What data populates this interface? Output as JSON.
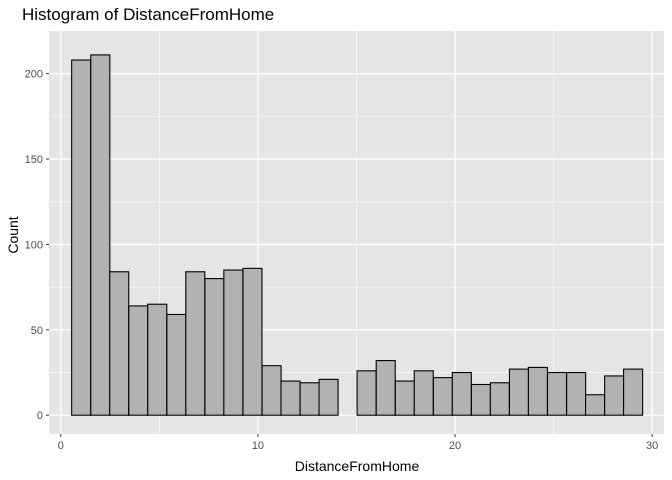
{
  "chart_data": {
    "type": "bar",
    "title": "Histogram of DistanceFromHome",
    "xlabel": "DistanceFromHome",
    "ylabel": "Count",
    "xlim": [
      -0.6,
      30.6
    ],
    "ylim": [
      -11,
      225
    ],
    "x_ticks": [
      0,
      10,
      20,
      30
    ],
    "y_ticks": [
      0,
      50,
      100,
      150,
      200
    ],
    "grid": true,
    "bin_width": 0.965,
    "bins": [
      {
        "x_start": 0.55,
        "count": 208
      },
      {
        "x_start": 1.52,
        "count": 211
      },
      {
        "x_start": 2.48,
        "count": 84
      },
      {
        "x_start": 3.45,
        "count": 64
      },
      {
        "x_start": 4.41,
        "count": 65
      },
      {
        "x_start": 5.38,
        "count": 59
      },
      {
        "x_start": 6.34,
        "count": 84
      },
      {
        "x_start": 7.31,
        "count": 80
      },
      {
        "x_start": 8.27,
        "count": 85
      },
      {
        "x_start": 9.24,
        "count": 86
      },
      {
        "x_start": 10.21,
        "count": 29
      },
      {
        "x_start": 11.17,
        "count": 20
      },
      {
        "x_start": 12.14,
        "count": 19
      },
      {
        "x_start": 13.1,
        "count": 21
      },
      {
        "x_start": 14.07,
        "count": 0
      },
      {
        "x_start": 15.03,
        "count": 26
      },
      {
        "x_start": 16.0,
        "count": 32
      },
      {
        "x_start": 16.97,
        "count": 20
      },
      {
        "x_start": 17.93,
        "count": 26
      },
      {
        "x_start": 18.9,
        "count": 22
      },
      {
        "x_start": 19.86,
        "count": 25
      },
      {
        "x_start": 20.83,
        "count": 18
      },
      {
        "x_start": 21.79,
        "count": 19
      },
      {
        "x_start": 22.76,
        "count": 27
      },
      {
        "x_start": 23.72,
        "count": 28
      },
      {
        "x_start": 24.69,
        "count": 25
      },
      {
        "x_start": 25.66,
        "count": 25
      },
      {
        "x_start": 26.62,
        "count": 12
      },
      {
        "x_start": 27.59,
        "count": 23
      },
      {
        "x_start": 28.55,
        "count": 27
      }
    ],
    "colors": {
      "panel_background": "#e5e5e5",
      "grid_major": "#ffffff",
      "bar_fill": "#b2b2b2",
      "bar_outline": "#000000",
      "tick_label": "#4d4d4d"
    }
  }
}
